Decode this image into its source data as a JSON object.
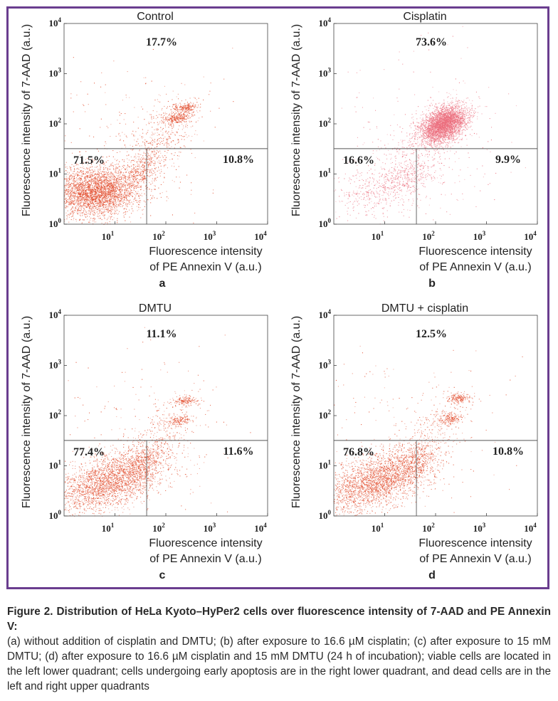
{
  "figure": {
    "caption_title": "Figure 2. Distribution of HeLa Kyoto–HyPer2 cells over fluorescence intensity of 7-AAD and PE Annexin V:",
    "caption_body": "(a) without addition of cisplatin and DMTU; (b) after exposure to 16.6 µM cisplatin; (c) after exposure to 15 mM DMTU; (d) after exposure to 16.6 µM cisplatin and 15 mM DMTU (24 h of incubation); viable cells are located in the left lower quadrant; cells undergoing early apoptosis are in the right lower quadrant, and dead cells are in the left and right upper quadrants"
  },
  "chart_data": [
    {
      "type": "scatter",
      "panel_letter": "a",
      "title": "Control",
      "xlabel_line1": "Fluorescence intensity",
      "xlabel_line2": "of PE Annexin V (a.u.)",
      "ylabel": "Fluorescence intensity of 7-AAD (a.u.)",
      "x_scale": "log",
      "y_scale": "log",
      "xlim": [
        1,
        10000
      ],
      "ylim": [
        1,
        10000
      ],
      "x_ticks": [
        10,
        100,
        1000,
        10000
      ],
      "y_ticks": [
        1,
        10,
        100,
        1000,
        10000
      ],
      "gate": {
        "x": 42,
        "y": 32
      },
      "quadrant_labels": {
        "upper": "17.7%",
        "lower_left": "71.5%",
        "lower_right": "10.8%"
      },
      "point_color": "#e24a2a"
    },
    {
      "type": "scatter",
      "panel_letter": "b",
      "title": "Cisplatin",
      "xlabel_line1": "Fluorescence intensity",
      "xlabel_line2": "of PE Annexin V (a.u.)",
      "ylabel": "Fluorescence intensity of 7-AAD (a.u.)",
      "x_scale": "log",
      "y_scale": "log",
      "xlim": [
        1,
        10000
      ],
      "ylim": [
        1,
        10000
      ],
      "x_ticks": [
        10,
        100,
        1000,
        10000
      ],
      "y_ticks": [
        1,
        10,
        100,
        1000,
        10000
      ],
      "gate": {
        "x": 42,
        "y": 32
      },
      "quadrant_labels": {
        "upper": "73.6%",
        "lower_left": "16.6%",
        "lower_right": "9.9%"
      },
      "point_color": "#ec6f7e"
    },
    {
      "type": "scatter",
      "panel_letter": "c",
      "title": "DMTU",
      "xlabel_line1": "Fluorescence intensity",
      "xlabel_line2": "of PE Annexin V (a.u.)",
      "ylabel": "Fluorescence intensity of 7-AAD (a.u.)",
      "x_scale": "log",
      "y_scale": "log",
      "xlim": [
        1,
        10000
      ],
      "ylim": [
        1,
        10000
      ],
      "x_ticks": [
        10,
        100,
        1000,
        10000
      ],
      "y_ticks": [
        1,
        10,
        100,
        1000,
        10000
      ],
      "gate": {
        "x": 42,
        "y": 32
      },
      "quadrant_labels": {
        "upper": "11.1%",
        "lower_left": "77.4%",
        "lower_right": "11.6%"
      },
      "point_color": "#e24a2a"
    },
    {
      "type": "scatter",
      "panel_letter": "d",
      "title": "DMTU + cisplatin",
      "xlabel_line1": "Fluorescence intensity",
      "xlabel_line2": "of PE Annexin V (a.u.)",
      "ylabel": "Fluorescence intensity of 7-AAD (a.u.)",
      "x_scale": "log",
      "y_scale": "log",
      "xlim": [
        1,
        10000
      ],
      "ylim": [
        1,
        10000
      ],
      "x_ticks": [
        10,
        100,
        1000,
        10000
      ],
      "y_ticks": [
        1,
        10,
        100,
        1000,
        10000
      ],
      "gate": {
        "x": 42,
        "y": 32
      },
      "quadrant_labels": {
        "upper": "12.5%",
        "lower_left": "76.8%",
        "lower_right": "10.8%"
      },
      "point_color": "#e24a2a"
    }
  ]
}
